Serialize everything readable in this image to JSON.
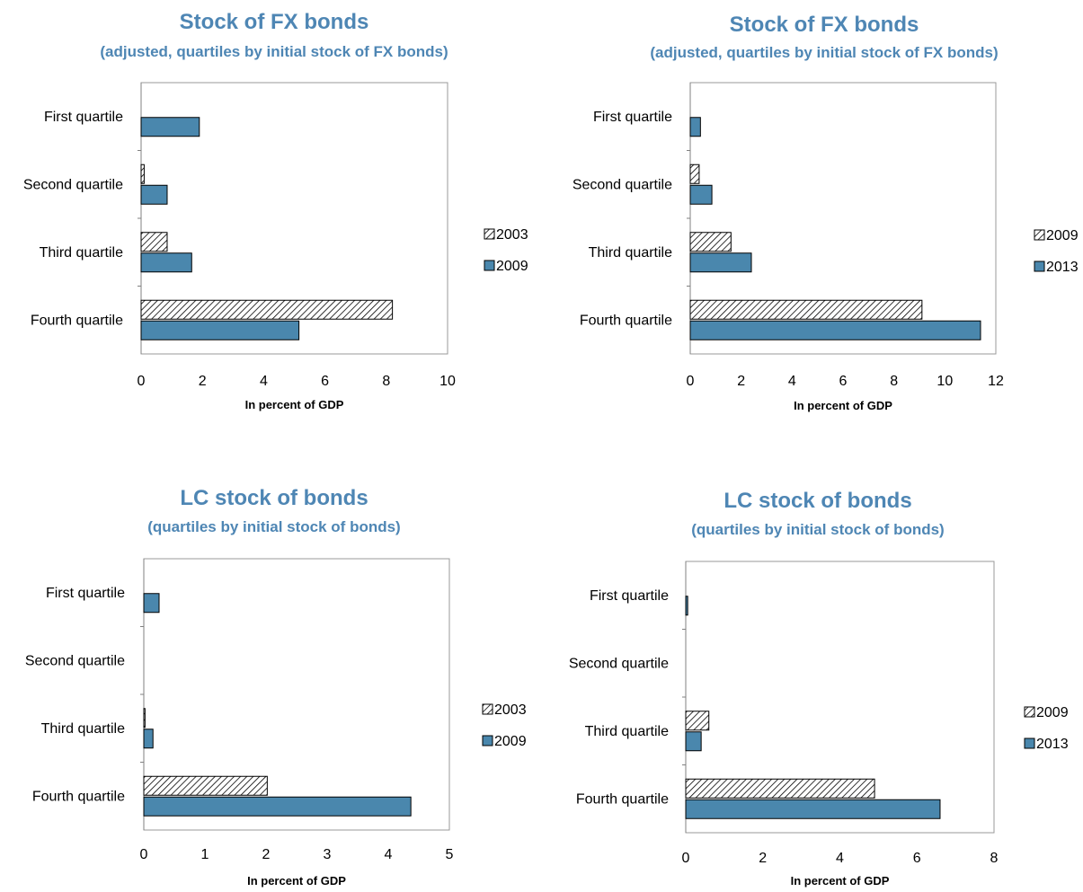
{
  "colors": {
    "title": "#4e86b4",
    "bar_fill": "#4a87ad",
    "hatch_bg": "#ffffff",
    "axis": "#808080",
    "frame": "#999999"
  },
  "chart_data": [
    {
      "type": "bar",
      "orientation": "horizontal",
      "title": "Stock of FX bonds",
      "subtitle": "(adjusted, quartiles by initial stock of FX bonds)",
      "categories": [
        "First quartile",
        "Second quartile",
        "Third quartile",
        "Fourth quartile"
      ],
      "series": [
        {
          "name": "2003",
          "pattern": "hatched",
          "values": [
            0,
            0.1,
            0.85,
            8.2
          ]
        },
        {
          "name": "2009",
          "pattern": "solid",
          "values": [
            1.9,
            0.85,
            1.65,
            5.15
          ]
        }
      ],
      "xlabel": "In percent of GDP",
      "xlim": [
        0,
        10
      ],
      "xticks": [
        0,
        2,
        4,
        6,
        8,
        10
      ],
      "legend": "right"
    },
    {
      "type": "bar",
      "orientation": "horizontal",
      "title": "Stock of FX bonds",
      "subtitle": "(adjusted, quartiles by initial stock of FX bonds)",
      "categories": [
        "First quartile",
        "Second quartile",
        "Third quartile",
        "Fourth quartile"
      ],
      "series": [
        {
          "name": "2009",
          "pattern": "hatched",
          "values": [
            0,
            0.35,
            1.6,
            9.1
          ]
        },
        {
          "name": "2013",
          "pattern": "solid",
          "values": [
            0.4,
            0.85,
            2.4,
            11.4
          ]
        }
      ],
      "xlabel": "In percent of GDP",
      "xlim": [
        0,
        12
      ],
      "xticks": [
        0,
        2,
        4,
        6,
        8,
        10,
        12
      ],
      "legend": "right"
    },
    {
      "type": "bar",
      "orientation": "horizontal",
      "title": "LC stock of bonds",
      "subtitle": "(quartiles by initial stock of bonds)",
      "categories": [
        "First quartile",
        "Second quartile",
        "Third quartile",
        "Fourth quartile"
      ],
      "series": [
        {
          "name": "2003",
          "pattern": "hatched",
          "values": [
            0,
            0,
            0.02,
            2.02
          ]
        },
        {
          "name": "2009",
          "pattern": "solid",
          "values": [
            0.25,
            0,
            0.15,
            4.37
          ]
        }
      ],
      "xlabel": "In percent of GDP",
      "xlim": [
        0,
        5
      ],
      "xticks": [
        0,
        1,
        2,
        3,
        4,
        5
      ],
      "legend": "right"
    },
    {
      "type": "bar",
      "orientation": "horizontal",
      "title": "LC stock of bonds",
      "subtitle": "(quartiles by initial stock of bonds)",
      "categories": [
        "First quartile",
        "Second quartile",
        "Third quartile",
        "Fourth quartile"
      ],
      "series": [
        {
          "name": "2009",
          "pattern": "hatched",
          "values": [
            0,
            0,
            0.6,
            4.9
          ]
        },
        {
          "name": "2013",
          "pattern": "solid",
          "values": [
            0.05,
            0,
            0.4,
            6.6
          ]
        }
      ],
      "xlabel": "In percent of GDP",
      "xlim": [
        0,
        8
      ],
      "xticks": [
        0,
        2,
        4,
        6,
        8
      ],
      "legend": "right"
    }
  ]
}
